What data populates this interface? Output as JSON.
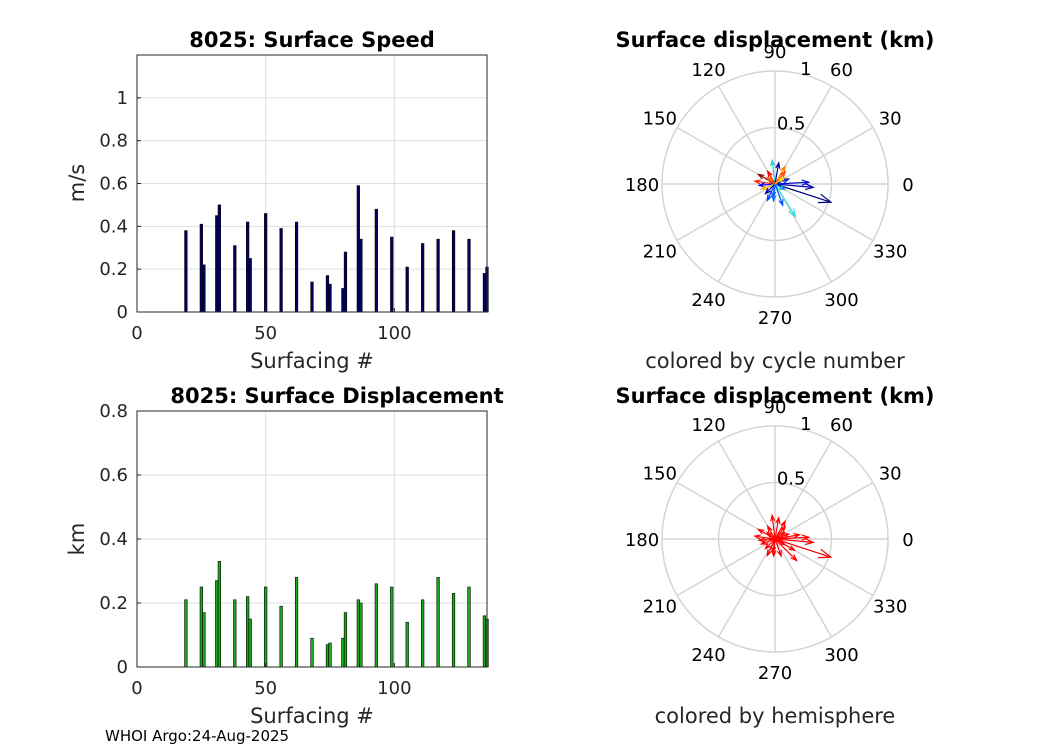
{
  "footer": "WHOI Argo:24-Aug-2025",
  "chart_data": [
    {
      "id": "speed",
      "type": "bar",
      "title": "8025: Surface Speed",
      "xlabel": "Surfacing #",
      "ylabel": "m/s",
      "xlim": [
        0,
        136
      ],
      "ylim": [
        0,
        1.2
      ],
      "xticks": [
        0,
        50,
        100
      ],
      "yticks": [
        0,
        0.2,
        0.4,
        0.6,
        0.8,
        1
      ],
      "color": "#000066",
      "x": [
        19,
        25,
        26,
        31,
        32,
        38,
        43,
        44,
        50,
        56,
        62,
        68,
        74,
        75,
        80,
        81,
        86,
        87,
        93,
        99,
        105,
        111,
        117,
        123,
        129,
        135,
        136
      ],
      "values": [
        0.38,
        0.41,
        0.22,
        0.45,
        0.5,
        0.31,
        0.42,
        0.25,
        0.46,
        0.39,
        0.42,
        0.14,
        0.17,
        0.13,
        0.11,
        0.28,
        0.59,
        0.34,
        0.48,
        0.35,
        0.21,
        0.32,
        0.34,
        0.38,
        0.34,
        0.18,
        0.21
      ]
    },
    {
      "id": "displacement",
      "type": "bar",
      "title": "8025: Surface Displacement",
      "xlabel": "Surfacing #",
      "ylabel": "km",
      "xlim": [
        0,
        136
      ],
      "ylim": [
        0,
        0.8
      ],
      "xticks": [
        0,
        50,
        100
      ],
      "yticks": [
        0,
        0.2,
        0.4,
        0.6,
        0.8
      ],
      "color": "#1aaa1a",
      "x": [
        19,
        25,
        26,
        31,
        32,
        38,
        43,
        44,
        50,
        56,
        62,
        68,
        74,
        75,
        80,
        81,
        86,
        87,
        93,
        99,
        105,
        111,
        117,
        123,
        129,
        135,
        136
      ],
      "values": [
        0.21,
        0.25,
        0.17,
        0.27,
        0.33,
        0.21,
        0.22,
        0.15,
        0.25,
        0.19,
        0.28,
        0.09,
        0.07,
        0.075,
        0.09,
        0.17,
        0.21,
        0.2,
        0.26,
        0.25,
        0.14,
        0.21,
        0.28,
        0.23,
        0.25,
        0.16,
        0.15
      ]
    },
    {
      "id": "polar-cycle",
      "type": "polar-vector",
      "title": "Surface displacement (km)",
      "caption": "colored by cycle number",
      "rmax": 1,
      "rings": [
        0.5,
        1
      ],
      "ring_labels": [
        "0.5",
        "1"
      ],
      "angles": [
        0,
        30,
        60,
        90,
        120,
        150,
        180,
        210,
        240,
        270,
        300,
        330
      ],
      "vectors": [
        {
          "angle": -18,
          "r": 0.52,
          "color": "#00007f"
        },
        {
          "angle": -5,
          "r": 0.34,
          "color": "#0000b8"
        },
        {
          "angle": 3,
          "r": 0.3,
          "color": "#0010d8"
        },
        {
          "angle": -58,
          "r": 0.34,
          "color": "#30e0e0"
        },
        {
          "angle": -70,
          "r": 0.2,
          "color": "#0050ff"
        },
        {
          "angle": -95,
          "r": 0.15,
          "color": "#0080ff"
        },
        {
          "angle": 97,
          "r": 0.21,
          "color": "#30c8d8"
        },
        {
          "angle": 80,
          "r": 0.19,
          "color": "#00008f"
        },
        {
          "angle": 60,
          "r": 0.18,
          "color": "#ff8000"
        },
        {
          "angle": 50,
          "r": 0.14,
          "color": "#ff4000"
        },
        {
          "angle": 120,
          "r": 0.13,
          "color": "#ff0000"
        },
        {
          "angle": 150,
          "r": 0.17,
          "color": "#8f0000"
        },
        {
          "angle": 172,
          "r": 0.18,
          "color": "#ff2000"
        },
        {
          "angle": 185,
          "r": 0.14,
          "color": "#0000ff"
        },
        {
          "angle": 200,
          "r": 0.13,
          "color": "#ffb000"
        },
        {
          "angle": 225,
          "r": 0.12,
          "color": "#0000a0"
        },
        {
          "angle": 245,
          "r": 0.16,
          "color": "#0040ff"
        },
        {
          "angle": 260,
          "r": 0.12,
          "color": "#0060ff"
        },
        {
          "angle": 20,
          "r": 0.13,
          "color": "#0020c0"
        },
        {
          "angle": 35,
          "r": 0.1,
          "color": "#ffd000"
        },
        {
          "angle": 140,
          "r": 0.09,
          "color": "#ff6000"
        },
        {
          "angle": 330,
          "r": 0.1,
          "color": "#00a0ff"
        }
      ]
    },
    {
      "id": "polar-hemisphere",
      "type": "polar-vector",
      "title": "Surface displacement (km)",
      "caption": "colored by hemisphere",
      "rmax": 1,
      "rings": [
        0.5,
        1
      ],
      "ring_labels": [
        "0.5",
        "1"
      ],
      "angles": [
        0,
        30,
        60,
        90,
        120,
        150,
        180,
        210,
        240,
        270,
        300,
        330
      ],
      "color": "#ff0000",
      "vectors": [
        {
          "angle": -18,
          "r": 0.52
        },
        {
          "angle": -5,
          "r": 0.34
        },
        {
          "angle": 3,
          "r": 0.3
        },
        {
          "angle": -45,
          "r": 0.27
        },
        {
          "angle": -70,
          "r": 0.16
        },
        {
          "angle": -95,
          "r": 0.15
        },
        {
          "angle": 97,
          "r": 0.21
        },
        {
          "angle": 80,
          "r": 0.19
        },
        {
          "angle": 60,
          "r": 0.18
        },
        {
          "angle": 50,
          "r": 0.14
        },
        {
          "angle": 120,
          "r": 0.13
        },
        {
          "angle": 150,
          "r": 0.17
        },
        {
          "angle": 172,
          "r": 0.18
        },
        {
          "angle": 185,
          "r": 0.14
        },
        {
          "angle": 200,
          "r": 0.13
        },
        {
          "angle": 225,
          "r": 0.12
        },
        {
          "angle": 245,
          "r": 0.16
        },
        {
          "angle": 260,
          "r": 0.12
        },
        {
          "angle": 20,
          "r": 0.13
        },
        {
          "angle": 35,
          "r": 0.1
        },
        {
          "angle": 140,
          "r": 0.09
        },
        {
          "angle": 330,
          "r": 0.1
        },
        {
          "angle": 10,
          "r": 0.22
        },
        {
          "angle": -30,
          "r": 0.2
        }
      ]
    }
  ]
}
